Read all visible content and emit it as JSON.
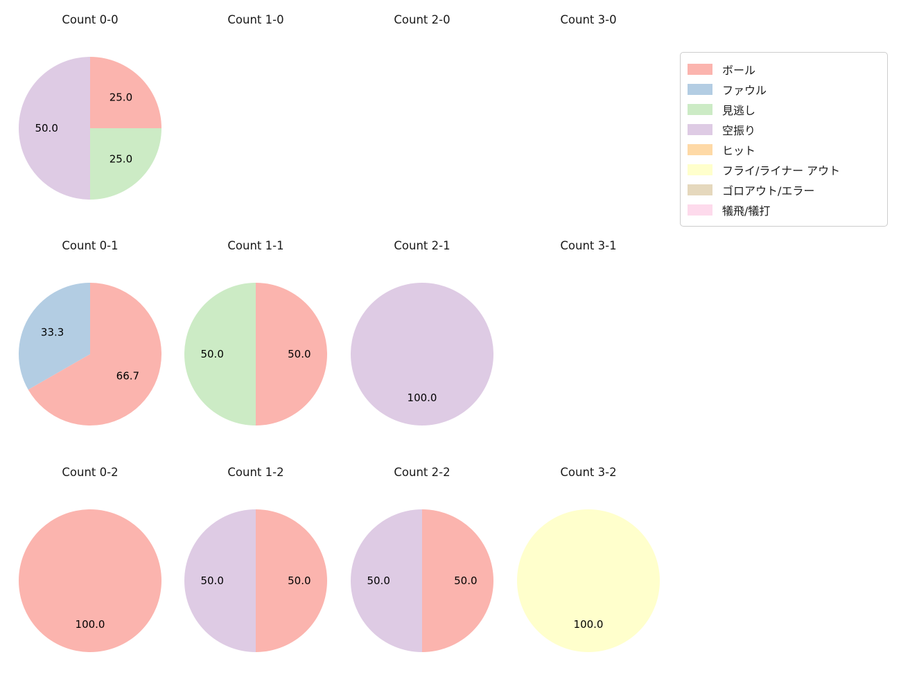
{
  "figure": {
    "background": "#ffffff",
    "text_color": "#1a1a1a"
  },
  "legend": {
    "items": [
      {
        "label": "ボール",
        "color": "#fbb4ae"
      },
      {
        "label": "ファウル",
        "color": "#b3cde3"
      },
      {
        "label": "見逃し",
        "color": "#ccebc5"
      },
      {
        "label": "空振り",
        "color": "#decbe4"
      },
      {
        "label": "ヒット",
        "color": "#fed9a6"
      },
      {
        "label": "フライ/ライナー アウト",
        "color": "#ffffcc"
      },
      {
        "label": "ゴロアウト/エラー",
        "color": "#e5d8bd"
      },
      {
        "label": "犠飛/犠打",
        "color": "#fddaec"
      }
    ]
  },
  "chart_data": [
    {
      "type": "pie",
      "title": "Count 0-0",
      "start_angle": 90,
      "direction": "clockwise",
      "slices": [
        {
          "label": "ボール",
          "value": 25.0
        },
        {
          "label": "見逃し",
          "value": 25.0
        },
        {
          "label": "空振り",
          "value": 50.0
        }
      ]
    },
    {
      "type": "pie",
      "title": "Count 1-0",
      "slices": []
    },
    {
      "type": "pie",
      "title": "Count 2-0",
      "slices": []
    },
    {
      "type": "pie",
      "title": "Count 3-0",
      "slices": []
    },
    {
      "type": "pie",
      "title": "Count 0-1",
      "start_angle": 90,
      "direction": "clockwise",
      "slices": [
        {
          "label": "ボール",
          "value": 66.7
        },
        {
          "label": "ファウル",
          "value": 33.3
        }
      ]
    },
    {
      "type": "pie",
      "title": "Count 1-1",
      "start_angle": 90,
      "direction": "clockwise",
      "slices": [
        {
          "label": "ボール",
          "value": 50.0
        },
        {
          "label": "見逃し",
          "value": 50.0
        }
      ]
    },
    {
      "type": "pie",
      "title": "Count 2-1",
      "start_angle": 90,
      "direction": "clockwise",
      "slices": [
        {
          "label": "空振り",
          "value": 100.0
        }
      ]
    },
    {
      "type": "pie",
      "title": "Count 3-1",
      "slices": []
    },
    {
      "type": "pie",
      "title": "Count 0-2",
      "start_angle": 90,
      "direction": "clockwise",
      "slices": [
        {
          "label": "ボール",
          "value": 100.0
        }
      ]
    },
    {
      "type": "pie",
      "title": "Count 1-2",
      "start_angle": 90,
      "direction": "clockwise",
      "slices": [
        {
          "label": "ボール",
          "value": 50.0
        },
        {
          "label": "空振り",
          "value": 50.0
        }
      ]
    },
    {
      "type": "pie",
      "title": "Count 2-2",
      "start_angle": 90,
      "direction": "clockwise",
      "slices": [
        {
          "label": "ボール",
          "value": 50.0
        },
        {
          "label": "空振り",
          "value": 50.0
        }
      ]
    },
    {
      "type": "pie",
      "title": "Count 3-2",
      "start_angle": 90,
      "direction": "clockwise",
      "slices": [
        {
          "label": "フライ/ライナー アウト",
          "value": 100.0
        }
      ]
    }
  ]
}
